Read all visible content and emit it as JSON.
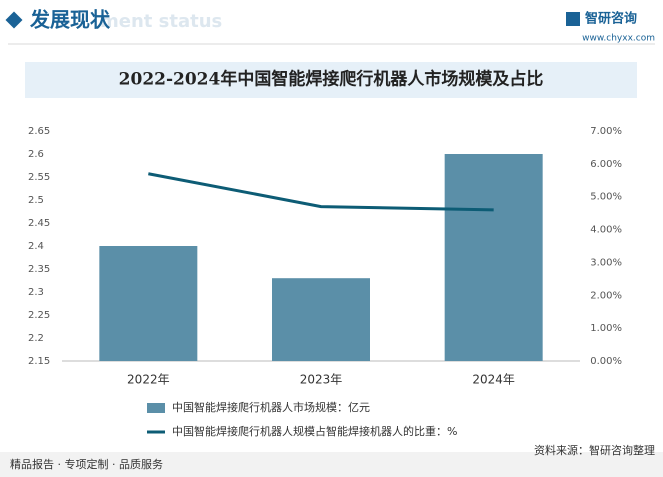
{
  "header": {
    "title": "发展现状",
    "subtitle_en": "ment status",
    "brand": "智研咨询",
    "url": "www.chyxx.com"
  },
  "chart_data": {
    "type": "bar",
    "title": "2022-2024年中国智能焊接爬行机器人市场规模及占比",
    "categories": [
      "2022年",
      "2023年",
      "2024年"
    ],
    "series": [
      {
        "name": "中国智能焊接爬行机器人市场规模：亿元",
        "type": "bar",
        "color": "#5b8fa8",
        "values": [
          2.4,
          2.33,
          2.6
        ]
      },
      {
        "name": "中国智能焊接爬行机器人规模占智能焊接机器人的比重：%",
        "type": "line",
        "axis": "y2",
        "color": "#0d5c75",
        "values": [
          5.7,
          4.7,
          4.6
        ]
      }
    ],
    "ylim": [
      2.15,
      2.65
    ],
    "yticks": [
      2.15,
      2.2,
      2.25,
      2.3,
      2.35,
      2.4,
      2.45,
      2.5,
      2.55,
      2.6,
      2.65
    ],
    "y2lim": [
      0,
      7
    ],
    "y2ticks": [
      {
        "value": 0,
        "label": "0.00%"
      },
      {
        "value": 1,
        "label": "1.00%"
      },
      {
        "value": 2,
        "label": "2.00%"
      },
      {
        "value": 3,
        "label": "3.00%"
      },
      {
        "value": 4,
        "label": "4.00%"
      },
      {
        "value": 5,
        "label": "5.00%"
      },
      {
        "value": 6,
        "label": "6.00%"
      },
      {
        "value": 7,
        "label": "7.00%"
      }
    ],
    "legend": "bottom"
  },
  "footer": {
    "left": "精品报告 · 专项定制 · 品质服务",
    "source": "资料来源：智研咨询整理"
  }
}
